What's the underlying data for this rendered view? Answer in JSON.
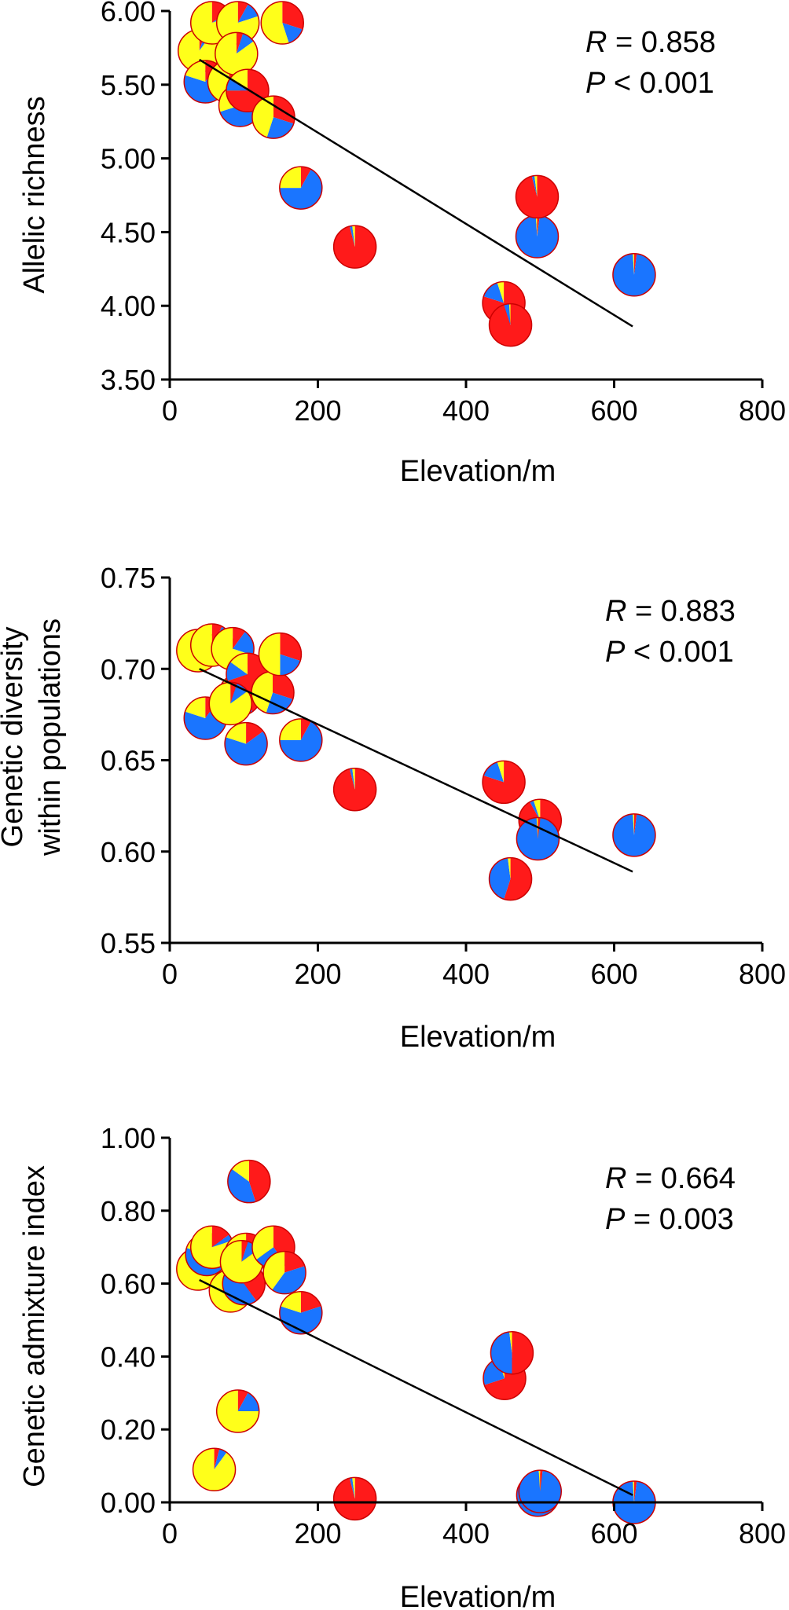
{
  "colors": {
    "red": "#ff1a1a",
    "blue": "#1a75ff",
    "yellow": "#ffff1a",
    "outline": "#cc0000"
  },
  "chart_data": [
    {
      "type": "scatter",
      "marker": "pie",
      "xlabel": "Elevation/m",
      "ylabel_lines": [
        "Allelic richness"
      ],
      "xlim": [
        0,
        800
      ],
      "ylim": [
        3.5,
        6.0
      ],
      "xticks": [
        "0",
        "200",
        "400",
        "600",
        "800"
      ],
      "yticks": [
        "3.50",
        "4.00",
        "4.50",
        "5.00",
        "5.50",
        "6.00"
      ],
      "stat_r": "0.858",
      "stat_p_op": "<",
      "stat_p": "0.001",
      "fit_line": [
        [
          40,
          5.67
        ],
        [
          625,
          3.86
        ]
      ],
      "pie_order": [
        "red",
        "blue",
        "yellow"
      ],
      "points": [
        {
          "x": 40,
          "y": 5.73,
          "pie": [
            0.05,
            0.05,
            0.9
          ]
        },
        {
          "x": 48,
          "y": 5.52,
          "pie": [
            0.1,
            0.7,
            0.2
          ]
        },
        {
          "x": 57,
          "y": 5.92,
          "pie": [
            0.15,
            0.05,
            0.8
          ]
        },
        {
          "x": 80,
          "y": 5.52,
          "pie": [
            0.1,
            0.15,
            0.75
          ]
        },
        {
          "x": 92,
          "y": 5.92,
          "pie": [
            0.08,
            0.12,
            0.8
          ]
        },
        {
          "x": 95,
          "y": 5.36,
          "pie": [
            0.15,
            0.55,
            0.3
          ]
        },
        {
          "x": 90,
          "y": 5.71,
          "pie": [
            0.05,
            0.1,
            0.85
          ]
        },
        {
          "x": 105,
          "y": 5.46,
          "pie": [
            0.75,
            0.1,
            0.15
          ]
        },
        {
          "x": 140,
          "y": 5.28,
          "pie": [
            0.3,
            0.25,
            0.45
          ]
        },
        {
          "x": 152,
          "y": 5.92,
          "pie": [
            0.3,
            0.15,
            0.55
          ]
        },
        {
          "x": 177,
          "y": 4.8,
          "pie": [
            0.08,
            0.67,
            0.25
          ]
        },
        {
          "x": 250,
          "y": 4.4,
          "pie": [
            0.96,
            0.02,
            0.02
          ]
        },
        {
          "x": 451,
          "y": 4.02,
          "pie": [
            0.8,
            0.15,
            0.05
          ]
        },
        {
          "x": 460,
          "y": 3.87,
          "pie": [
            0.95,
            0.04,
            0.01
          ]
        },
        {
          "x": 496,
          "y": 4.47,
          "pie": [
            0.02,
            0.97,
            0.01
          ]
        },
        {
          "x": 496,
          "y": 4.74,
          "pie": [
            0.96,
            0.02,
            0.02
          ]
        },
        {
          "x": 627,
          "y": 4.21,
          "pie": [
            0.02,
            0.97,
            0.01
          ]
        }
      ]
    },
    {
      "type": "scatter",
      "marker": "pie",
      "xlabel": "Elevation/m",
      "ylabel_lines": [
        "Genetic diversity",
        "within populations"
      ],
      "xlim": [
        0,
        800
      ],
      "ylim": [
        0.55,
        0.75
      ],
      "xticks": [
        "0",
        "200",
        "400",
        "600",
        "800"
      ],
      "yticks": [
        "0.55",
        "0.60",
        "0.65",
        "0.70",
        "0.75"
      ],
      "stat_r": "0.883",
      "stat_p_op": "<",
      "stat_p": "0.001",
      "fit_line": [
        [
          40,
          0.7
        ],
        [
          625,
          0.589
        ]
      ],
      "pie_order": [
        "red",
        "blue",
        "yellow"
      ],
      "points": [
        {
          "x": 38,
          "y": 0.71,
          "pie": [
            0.05,
            0.05,
            0.9
          ]
        },
        {
          "x": 48,
          "y": 0.673,
          "pie": [
            0.1,
            0.7,
            0.2
          ]
        },
        {
          "x": 57,
          "y": 0.713,
          "pie": [
            0.08,
            0.04,
            0.88
          ]
        },
        {
          "x": 85,
          "y": 0.711,
          "pie": [
            0.1,
            0.2,
            0.7
          ]
        },
        {
          "x": 95,
          "y": 0.686,
          "pie": [
            0.4,
            0.45,
            0.15
          ]
        },
        {
          "x": 105,
          "y": 0.697,
          "pie": [
            0.7,
            0.15,
            0.15
          ]
        },
        {
          "x": 82,
          "y": 0.681,
          "pie": [
            0.05,
            0.1,
            0.85
          ]
        },
        {
          "x": 103,
          "y": 0.659,
          "pie": [
            0.15,
            0.65,
            0.2
          ]
        },
        {
          "x": 139,
          "y": 0.687,
          "pie": [
            0.3,
            0.25,
            0.45
          ]
        },
        {
          "x": 149,
          "y": 0.708,
          "pie": [
            0.3,
            0.2,
            0.5
          ]
        },
        {
          "x": 177,
          "y": 0.661,
          "pie": [
            0.08,
            0.67,
            0.25
          ]
        },
        {
          "x": 250,
          "y": 0.634,
          "pie": [
            0.96,
            0.02,
            0.02
          ]
        },
        {
          "x": 451,
          "y": 0.638,
          "pie": [
            0.8,
            0.15,
            0.05
          ]
        },
        {
          "x": 460,
          "y": 0.585,
          "pie": [
            0.55,
            0.43,
            0.02
          ]
        },
        {
          "x": 500,
          "y": 0.617,
          "pie": [
            0.92,
            0.03,
            0.05
          ]
        },
        {
          "x": 497,
          "y": 0.607,
          "pie": [
            0.02,
            0.97,
            0.01
          ]
        },
        {
          "x": 627,
          "y": 0.609,
          "pie": [
            0.02,
            0.97,
            0.01
          ]
        }
      ]
    },
    {
      "type": "scatter",
      "marker": "pie",
      "xlabel": "Elevation/m",
      "ylabel_lines": [
        "Genetic admixture index"
      ],
      "xlim": [
        0,
        800
      ],
      "ylim": [
        0.0,
        1.0
      ],
      "xticks": [
        "0",
        "200",
        "400",
        "600",
        "800"
      ],
      "yticks": [
        "0.00",
        "0.20",
        "0.40",
        "0.60",
        "0.80",
        "1.00"
      ],
      "stat_r": "0.664",
      "stat_p_op": "=",
      "stat_p": "0.003",
      "fit_line": [
        [
          40,
          0.61
        ],
        [
          625,
          0.02
        ]
      ],
      "pie_order": [
        "red",
        "blue",
        "yellow"
      ],
      "points": [
        {
          "x": 38,
          "y": 0.64,
          "pie": [
            0.05,
            0.05,
            0.9
          ]
        },
        {
          "x": 50,
          "y": 0.68,
          "pie": [
            0.1,
            0.7,
            0.2
          ]
        },
        {
          "x": 57,
          "y": 0.7,
          "pie": [
            0.15,
            0.05,
            0.8
          ]
        },
        {
          "x": 60,
          "y": 0.09,
          "pie": [
            0.04,
            0.06,
            0.9
          ]
        },
        {
          "x": 82,
          "y": 0.58,
          "pie": [
            0.1,
            0.15,
            0.75
          ]
        },
        {
          "x": 92,
          "y": 0.25,
          "pie": [
            0.08,
            0.17,
            0.75
          ]
        },
        {
          "x": 100,
          "y": 0.6,
          "pie": [
            0.4,
            0.45,
            0.15
          ]
        },
        {
          "x": 103,
          "y": 0.68,
          "pie": [
            0.6,
            0.2,
            0.2
          ]
        },
        {
          "x": 97,
          "y": 0.66,
          "pie": [
            0.05,
            0.1,
            0.85
          ]
        },
        {
          "x": 107,
          "y": 0.88,
          "pie": [
            0.45,
            0.4,
            0.15
          ]
        },
        {
          "x": 140,
          "y": 0.7,
          "pie": [
            0.4,
            0.25,
            0.35
          ]
        },
        {
          "x": 155,
          "y": 0.63,
          "pie": [
            0.2,
            0.4,
            0.4
          ]
        },
        {
          "x": 177,
          "y": 0.52,
          "pie": [
            0.2,
            0.6,
            0.2
          ]
        },
        {
          "x": 250,
          "y": 0.01,
          "pie": [
            0.96,
            0.02,
            0.02
          ]
        },
        {
          "x": 452,
          "y": 0.34,
          "pie": [
            0.7,
            0.25,
            0.05
          ]
        },
        {
          "x": 462,
          "y": 0.41,
          "pie": [
            0.5,
            0.48,
            0.02
          ]
        },
        {
          "x": 497,
          "y": 0.02,
          "pie": [
            0.1,
            0.88,
            0.02
          ]
        },
        {
          "x": 500,
          "y": 0.03,
          "pie": [
            0.02,
            0.97,
            0.01
          ]
        },
        {
          "x": 627,
          "y": 0.0,
          "pie": [
            0.02,
            0.97,
            0.01
          ]
        }
      ]
    }
  ]
}
